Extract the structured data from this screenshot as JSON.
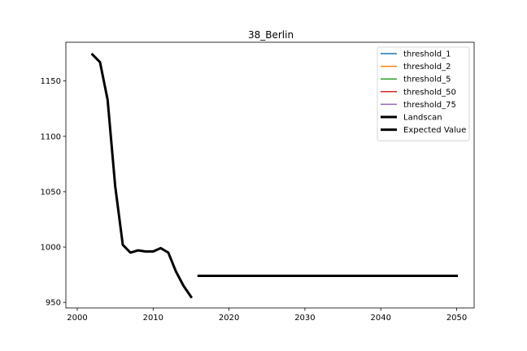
{
  "chart_data": {
    "type": "line",
    "title": "38_Berlin",
    "xlabel": "",
    "ylabel": "",
    "xlim": [
      1998.5,
      2052.3
    ],
    "ylim": [
      945,
      1185
    ],
    "xticks": [
      2000,
      2010,
      2020,
      2030,
      2040,
      2050
    ],
    "yticks": [
      950,
      1000,
      1050,
      1100,
      1150
    ],
    "grid": false,
    "legend_position": "upper right",
    "legend": [
      {
        "name": "threshold_1",
        "color": "#1f77b4",
        "width": 1.5
      },
      {
        "name": "threshold_2",
        "color": "#ff7f0e",
        "width": 1.5
      },
      {
        "name": "threshold_5",
        "color": "#2ca02c",
        "width": 1.5
      },
      {
        "name": "threshold_50",
        "color": "#d62728",
        "width": 1.5
      },
      {
        "name": "threshold_75",
        "color": "#9467bd",
        "width": 1.5
      },
      {
        "name": "Landscan",
        "color": "#000000",
        "width": 3
      },
      {
        "name": "Expected Value",
        "color": "#000000",
        "width": 3
      }
    ],
    "series": [
      {
        "name": "Landscan",
        "color": "#000000",
        "x": [
          2002,
          2003,
          2004,
          2005,
          2006,
          2007,
          2008,
          2009,
          2010,
          2011,
          2012,
          2013,
          2014,
          2015
        ],
        "y": [
          1174,
          1167,
          1133,
          1055,
          1002,
          995,
          997,
          996,
          996,
          999,
          995,
          978,
          965,
          955
        ]
      },
      {
        "name": "Expected Value",
        "color": "#000000",
        "x": [
          2016,
          2050
        ],
        "y": [
          974,
          974
        ]
      }
    ]
  }
}
